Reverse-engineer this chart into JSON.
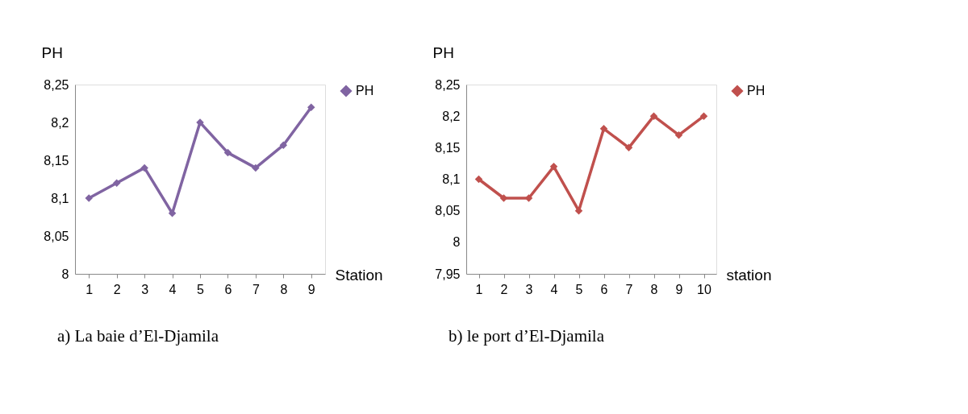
{
  "chart_data": [
    {
      "type": "line",
      "title": "a)   La baie d’El-Djamila",
      "xlabel": "Station",
      "ylabel": "PH",
      "categories": [
        "1",
        "2",
        "3",
        "4",
        "5",
        "6",
        "7",
        "8",
        "9"
      ],
      "series": [
        {
          "name": "PH",
          "color": "#8064a2",
          "values": [
            8.1,
            8.12,
            8.14,
            8.08,
            8.2,
            8.16,
            8.14,
            8.17,
            8.22
          ]
        }
      ],
      "ylim": [
        8,
        8.25
      ],
      "yticks": [
        {
          "value": 8,
          "label": "8"
        },
        {
          "value": 8.05,
          "label": "8,05"
        },
        {
          "value": 8.1,
          "label": "8,1"
        },
        {
          "value": 8.15,
          "label": "8,15"
        },
        {
          "value": 8.2,
          "label": "8,2"
        },
        {
          "value": 8.25,
          "label": "8,25"
        }
      ],
      "marker": "diamond",
      "line_style": "solid",
      "legend": "right",
      "grid": false
    },
    {
      "type": "line",
      "title": "b)        le port d’El-Djamila",
      "xlabel": "station",
      "ylabel": "PH",
      "categories": [
        "1",
        "2",
        "3",
        "4",
        "5",
        "6",
        "7",
        "8",
        "9",
        "10"
      ],
      "series": [
        {
          "name": "PH",
          "color": "#c0504d",
          "values": [
            8.1,
            8.07,
            8.07,
            8.12,
            8.05,
            8.18,
            8.15,
            8.2,
            8.17,
            8.2
          ]
        }
      ],
      "ylim": [
        7.95,
        8.25
      ],
      "yticks": [
        {
          "value": 7.95,
          "label": "7,95"
        },
        {
          "value": 8,
          "label": "8"
        },
        {
          "value": 8.05,
          "label": "8,05"
        },
        {
          "value": 8.1,
          "label": "8,1"
        },
        {
          "value": 8.15,
          "label": "8,15"
        },
        {
          "value": 8.2,
          "label": "8,2"
        },
        {
          "value": 8.25,
          "label": "8,25"
        }
      ],
      "marker": "diamond",
      "line_style": "solid",
      "legend": "right",
      "grid": false
    }
  ]
}
